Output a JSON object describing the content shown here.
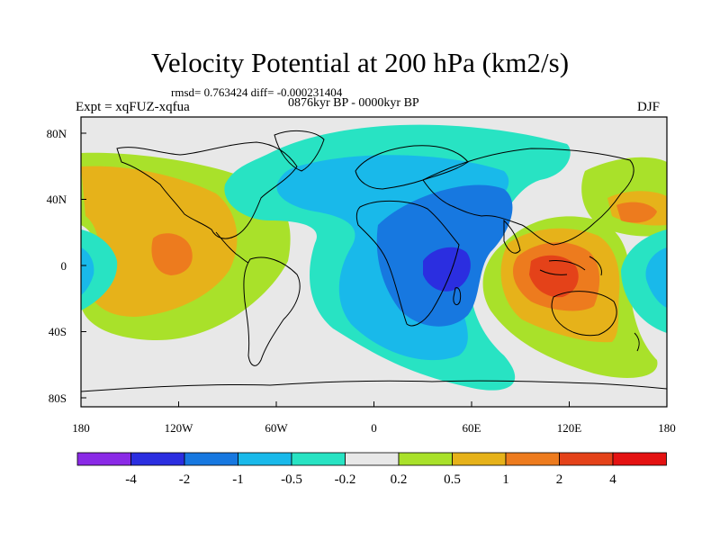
{
  "title": "Velocity Potential at 200 hPa (km2/s)",
  "stats": "rmsd= 0.763424 diff= -0.000231404",
  "period": "0876kyr BP - 0000kyr BP",
  "experiment": "Expt = xqFUZ-xqfua",
  "season": "DJF",
  "map": {
    "projection": "cylindrical equidistant",
    "lon_range": [
      -180,
      180
    ],
    "lat_range": [
      -90,
      90
    ],
    "x_ticks": [
      "180",
      "120W",
      "60W",
      "0",
      "60E",
      "120E",
      "180"
    ],
    "y_ticks": [
      "80N",
      "40N",
      "0",
      "40S",
      "80S"
    ]
  },
  "colorbar": {
    "labels": [
      "-4",
      "-2",
      "-1",
      "-0.5",
      "-0.2",
      "0.2",
      "0.5",
      "1",
      "2",
      "4"
    ],
    "colors": [
      "#8a2ae6",
      "#2b2ee0",
      "#1778e0",
      "#19b9ea",
      "#28e3c3",
      "#e8e8e8",
      "#a9e12a",
      "#e6b21a",
      "#ed7b1e",
      "#e44219",
      "#e41212"
    ]
  },
  "colors": {
    "background": "#ffffff",
    "neutral_field": "#e8e8e8",
    "coastline": "#000000"
  }
}
